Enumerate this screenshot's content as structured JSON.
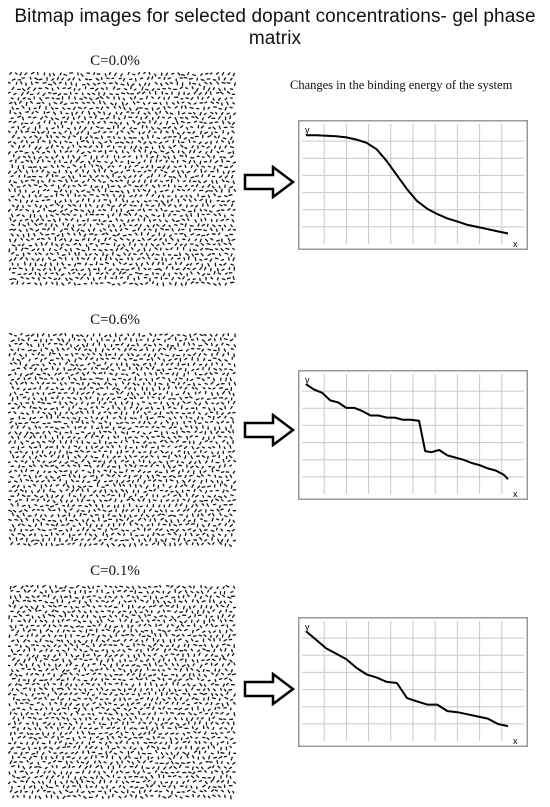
{
  "title": "Bitmap images for selected dopant concentrations- gel phase matrix",
  "subtitle": "Changes in the binding energy of the system",
  "panels": [
    {
      "label": "C=0.0%"
    },
    {
      "label": "C=0.6%"
    },
    {
      "label": "C=0.1%"
    }
  ],
  "chart_data": [
    {
      "type": "line",
      "xlabel": "x",
      "ylabel": "y",
      "xlim": [
        0,
        10
      ],
      "ylim": [
        0,
        1
      ],
      "grid": true,
      "series": [
        {
          "x": [
            0,
            0.5,
            1,
            1.5,
            2,
            2.5,
            3,
            3.5,
            4,
            4.5,
            5,
            5.5,
            6,
            6.5,
            7,
            7.5,
            8,
            8.5,
            9,
            9.5,
            10
          ],
          "values": [
            0.97,
            0.97,
            0.965,
            0.96,
            0.95,
            0.93,
            0.9,
            0.84,
            0.73,
            0.6,
            0.47,
            0.36,
            0.29,
            0.24,
            0.2,
            0.17,
            0.14,
            0.12,
            0.1,
            0.08,
            0.06
          ]
        }
      ]
    },
    {
      "type": "line",
      "xlabel": "x",
      "ylabel": "y",
      "xlim": [
        0,
        10
      ],
      "ylim": [
        0,
        1
      ],
      "grid": true,
      "series": [
        {
          "x": [
            0,
            0.4,
            0.8,
            1.2,
            1.6,
            2,
            2.4,
            2.8,
            3.2,
            3.6,
            4,
            4.4,
            4.8,
            5.2,
            5.6,
            5.9,
            6.2,
            6.6,
            7,
            7.4,
            7.8,
            8.2,
            8.6,
            9,
            9.4,
            9.8,
            10
          ],
          "values": [
            0.98,
            0.93,
            0.9,
            0.83,
            0.81,
            0.76,
            0.76,
            0.73,
            0.69,
            0.69,
            0.67,
            0.67,
            0.65,
            0.65,
            0.64,
            0.36,
            0.35,
            0.37,
            0.32,
            0.3,
            0.28,
            0.25,
            0.23,
            0.2,
            0.18,
            0.14,
            0.1
          ]
        }
      ]
    },
    {
      "type": "line",
      "xlabel": "x",
      "ylabel": "y",
      "xlim": [
        0,
        10
      ],
      "ylim": [
        0,
        1
      ],
      "grid": true,
      "series": [
        {
          "x": [
            0,
            0.5,
            1,
            1.5,
            2,
            2.5,
            3,
            3.5,
            4,
            4.5,
            5,
            5.5,
            6,
            6.5,
            7,
            7.5,
            8,
            8.5,
            9,
            9.5,
            10
          ],
          "values": [
            0.98,
            0.9,
            0.82,
            0.77,
            0.72,
            0.64,
            0.58,
            0.55,
            0.51,
            0.5,
            0.36,
            0.33,
            0.3,
            0.3,
            0.24,
            0.23,
            0.21,
            0.19,
            0.17,
            0.12,
            0.1
          ]
        }
      ]
    }
  ]
}
